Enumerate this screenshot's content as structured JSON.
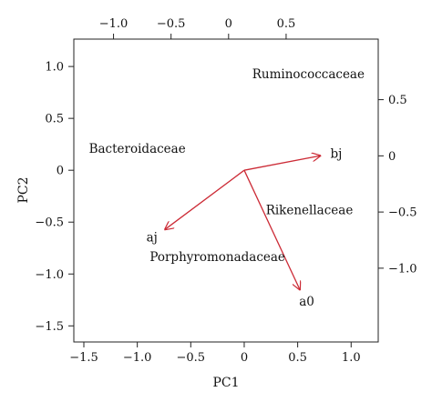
{
  "chart_data": {
    "type": "scatter",
    "subtype": "pca-biplot",
    "title": "",
    "xlabel": "PC1",
    "ylabel": "PC2",
    "xlim": [
      -1.5,
      1.1
    ],
    "ylim": [
      -1.55,
      1.15
    ],
    "x_ticks": [
      -1.5,
      -1.0,
      -0.5,
      0,
      0.5,
      1.0
    ],
    "x_tick_labels": [
      "−1.5",
      "−1.0",
      "−0.5",
      "0",
      "0.5",
      "1.0"
    ],
    "y_ticks": [
      -1.5,
      -1.0,
      -0.5,
      0,
      0.5,
      1.0
    ],
    "y_tick_labels": [
      "−1.5",
      "−1.0",
      "−0.5",
      "0",
      "0.5",
      "1.0"
    ],
    "top_axis": {
      "lim": [
        -1.25,
        1.15
      ],
      "ticks": [
        -1.0,
        -0.5,
        0,
        0.5
      ],
      "tick_labels": [
        "−1.0",
        "−0.5",
        "0",
        "0.5"
      ]
    },
    "right_axis": {
      "lim": [
        -1.6,
        0.95
      ],
      "ticks": [
        -1.0,
        -0.5,
        0,
        0.5
      ],
      "tick_labels": [
        "−1.0",
        "−0.5",
        "0",
        "0.5"
      ]
    },
    "points": [
      {
        "label": "Ruminococcaceae",
        "x": 0.6,
        "y": 0.93
      },
      {
        "label": "Bacteroidaceae",
        "x": -1.0,
        "y": 0.21
      },
      {
        "label": "Rikenellaceae",
        "x": 0.61,
        "y": -0.38
      },
      {
        "label": "Porphyromonadaceae",
        "x": -0.25,
        "y": -0.83
      }
    ],
    "arrows": [
      {
        "label": "bj",
        "x": 0.71,
        "y": 0.14
      },
      {
        "label": "aj",
        "x": -0.74,
        "y": -0.57
      },
      {
        "label": "a0",
        "x": 0.52,
        "y": -1.15
      }
    ],
    "arrow_color": "#cc2b36",
    "grid": false,
    "legend": "none"
  }
}
